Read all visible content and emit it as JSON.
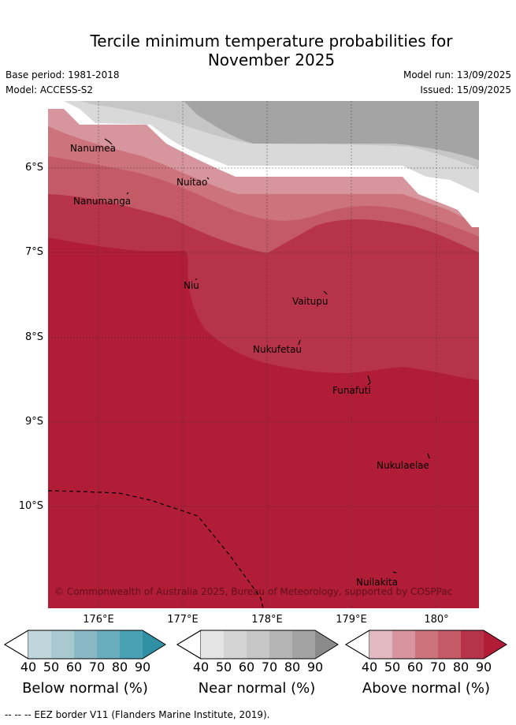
{
  "title_line1": "Tercile minimum temperature probabilities for",
  "title_line2": "November 2025",
  "base_period": "Base period: 1981-2018",
  "model": "Model: ACCESS-S2",
  "model_run": "Model run: 13/09/2025",
  "issued": "Issued: 15/09/2025",
  "lat_labels": [
    "6°S",
    "7°S",
    "8°S",
    "9°S",
    "10°S"
  ],
  "lon_labels": [
    "176°E",
    "177°E",
    "178°E",
    "179°E",
    "180°"
  ],
  "places": [
    "Nanumea",
    "Nanumanga",
    "Nuitao",
    "Niu",
    "Vaitupu",
    "Nukufetau",
    "Funafuti",
    "Nukulaelae",
    "Nuilakita"
  ],
  "copyright": "© Commonwealth of Australia 2025, Bureau of Meteorology, supported by COSPPac",
  "colorbars": [
    {
      "title": "Below normal (%)",
      "ticks": [
        "40",
        "50",
        "60",
        "70",
        "80",
        "90"
      ],
      "colors": [
        "#c0d6dd",
        "#a7c9cf",
        "#8bb8c5",
        "#6aaebe",
        "#48a2b4",
        "#2f8fa3"
      ]
    },
    {
      "title": "Near normal (%)",
      "ticks": [
        "40",
        "50",
        "60",
        "70",
        "80",
        "90"
      ],
      "colors": [
        "#e4e4e4",
        "#d4d4d4",
        "#c6c6c6",
        "#b4b4b4",
        "#a3a3a3",
        "#8a8a8a"
      ]
    },
    {
      "title": "Above normal (%)",
      "ticks": [
        "40",
        "50",
        "60",
        "70",
        "80",
        "90"
      ],
      "colors": [
        "#e2b9c0",
        "#d7959d",
        "#cd737c",
        "#c35a66",
        "#b7334a",
        "#b11c37"
      ]
    }
  ],
  "footer": "--  --  -- EEZ border V11 (Flanders Marine Institute, 2019)."
}
